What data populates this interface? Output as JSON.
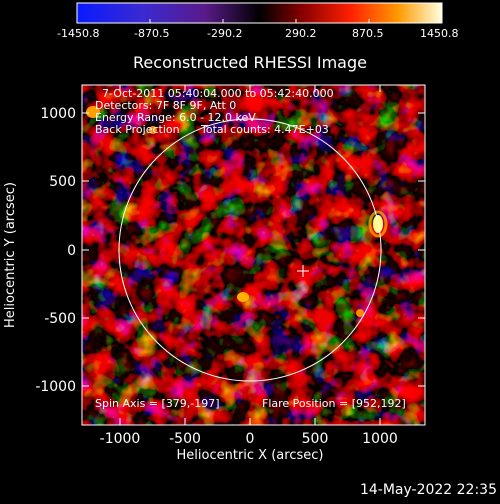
{
  "colorbar": {
    "tick_labels": [
      "-1450.8",
      "-870.5",
      "-290.2",
      "290.2",
      "870.5",
      "1450.8"
    ]
  },
  "plot": {
    "title": "Reconstructed RHESSI Image",
    "info_lines": [
      "7-Oct-2011 05:40:04.000 to 05:42:40.000",
      "Detectors: 7F 8F 9F, Att 0",
      "Energy Range: 6.0 - 12.0 keV"
    ],
    "back_projection_label": "Back Projection",
    "total_counts_label": "Total counts: 4.47E+03",
    "spin_axis": "Spin Axis = [379,-197]",
    "flare_position": "Flare Position = [952,192]",
    "x_label": "Heliocentric X (arcsec)",
    "y_label": "Heliocentric Y (arcsec)",
    "x_ticks": [
      "-1000",
      "-500",
      "0",
      "500",
      "1000"
    ],
    "y_ticks": [
      "1000",
      "500",
      "0",
      "-500",
      "-1000"
    ]
  },
  "timestamp": "14-May-2022 22:35",
  "colors": {
    "background": "#000000",
    "limb_circle": "#ffffff",
    "colormap": [
      "#0000ff",
      "#4a1a9a",
      "#1a0a1a",
      "#000000",
      "#8a0000",
      "#ff2a00",
      "#ffa000",
      "#ffffa0"
    ]
  }
}
